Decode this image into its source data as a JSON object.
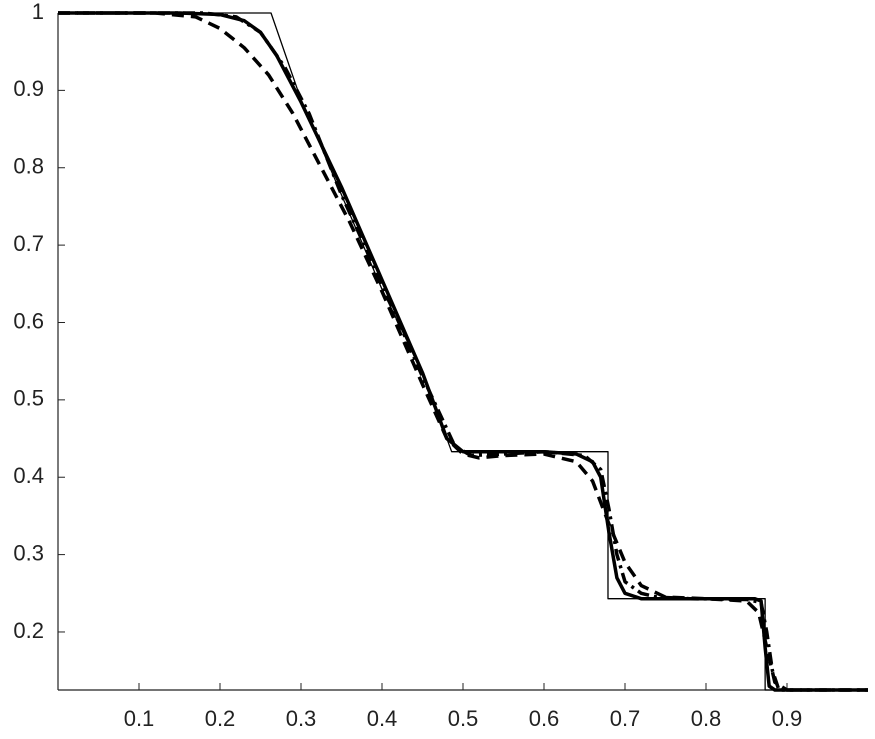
{
  "chart_data": {
    "type": "line",
    "xlim": [
      0,
      1
    ],
    "ylim": [
      0.125,
      1
    ],
    "xticks": [
      0.1,
      0.2,
      0.3,
      0.4,
      0.5,
      0.6,
      0.7,
      0.8,
      0.9
    ],
    "yticks": [
      0.2,
      0.3,
      0.4,
      0.5,
      0.6,
      0.7,
      0.8,
      0.9,
      1
    ],
    "grid": false,
    "series": [
      {
        "color": "#000000",
        "style": "solid",
        "width": 1.3,
        "x": [
          0,
          0.263,
          0.3,
          0.35,
          0.4,
          0.45,
          0.486,
          0.679,
          0.679,
          0.873,
          0.873,
          1
        ],
        "values": [
          1,
          1,
          0.888,
          0.765,
          0.643,
          0.535,
          0.433,
          0.433,
          0.243,
          0.243,
          0.125,
          0.125
        ]
      },
      {
        "color": "#000000",
        "style": "solid",
        "width": 3.5,
        "x": [
          0,
          0.15,
          0.2,
          0.23,
          0.25,
          0.27,
          0.3,
          0.35,
          0.4,
          0.45,
          0.48,
          0.5,
          0.55,
          0.6,
          0.64,
          0.66,
          0.67,
          0.68,
          0.69,
          0.7,
          0.72,
          0.76,
          0.8,
          0.86,
          0.868,
          0.873,
          0.878,
          0.885,
          1
        ],
        "values": [
          1,
          1,
          0.998,
          0.99,
          0.975,
          0.945,
          0.885,
          0.775,
          0.655,
          0.535,
          0.45,
          0.433,
          0.433,
          0.433,
          0.43,
          0.42,
          0.4,
          0.33,
          0.27,
          0.25,
          0.243,
          0.243,
          0.243,
          0.243,
          0.24,
          0.18,
          0.13,
          0.125,
          0.125
        ]
      },
      {
        "color": "#000000",
        "style": "dashed",
        "width": 3.5,
        "x": [
          0,
          0.12,
          0.17,
          0.2,
          0.23,
          0.26,
          0.29,
          0.32,
          0.36,
          0.4,
          0.45,
          0.48,
          0.5,
          0.52,
          0.55,
          0.6,
          0.64,
          0.66,
          0.68,
          0.7,
          0.72,
          0.75,
          0.8,
          0.85,
          0.865,
          0.875,
          0.885,
          0.9,
          1
        ],
        "values": [
          1,
          1,
          0.995,
          0.98,
          0.955,
          0.92,
          0.87,
          0.81,
          0.73,
          0.64,
          0.52,
          0.45,
          0.43,
          0.425,
          0.428,
          0.43,
          0.42,
          0.395,
          0.34,
          0.29,
          0.26,
          0.245,
          0.243,
          0.24,
          0.225,
          0.18,
          0.135,
          0.125,
          0.125
        ]
      },
      {
        "color": "#000000",
        "style": "dashdot",
        "width": 3.5,
        "x": [
          0,
          0.18,
          0.22,
          0.25,
          0.28,
          0.31,
          0.35,
          0.4,
          0.45,
          0.49,
          0.51,
          0.55,
          0.6,
          0.65,
          0.67,
          0.68,
          0.69,
          0.7,
          0.72,
          0.74,
          0.78,
          0.85,
          0.868,
          0.875,
          0.882,
          0.89,
          1
        ],
        "values": [
          1,
          1,
          0.995,
          0.975,
          0.93,
          0.87,
          0.765,
          0.65,
          0.53,
          0.44,
          0.428,
          0.43,
          0.433,
          0.428,
          0.41,
          0.36,
          0.3,
          0.265,
          0.25,
          0.245,
          0.243,
          0.242,
          0.238,
          0.2,
          0.15,
          0.125,
          0.125
        ]
      }
    ]
  }
}
